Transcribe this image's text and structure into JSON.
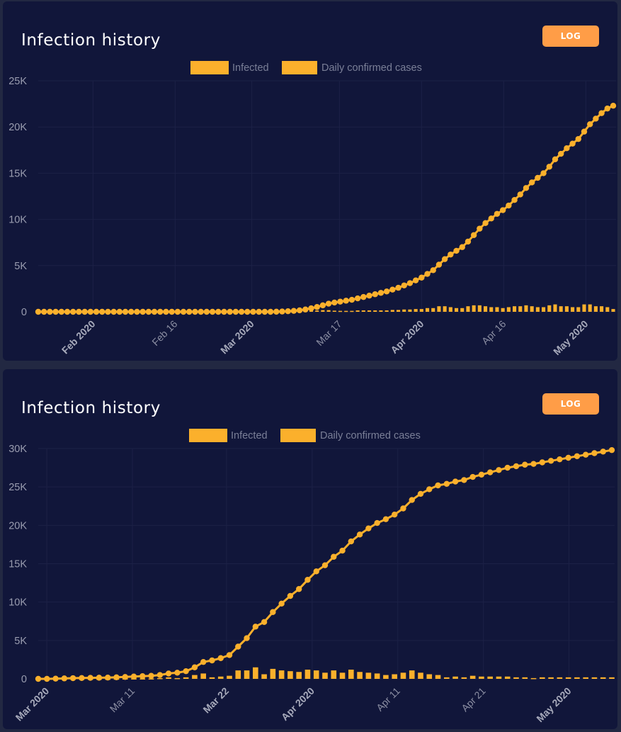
{
  "chart_data": [
    {
      "type": "line",
      "title": "Infection history",
      "button_label": "LOG",
      "legend": [
        "Infected",
        "Daily confirmed cases"
      ],
      "legend_position": "top-center",
      "grid": true,
      "colors": {
        "line": "#fbb02c",
        "bar": "#fbb02c"
      },
      "ylim": [
        0,
        25000
      ],
      "yticks": [
        {
          "value": 0,
          "label": "0"
        },
        {
          "value": 5000,
          "label": "5K"
        },
        {
          "value": 10000,
          "label": "10K"
        },
        {
          "value": 15000,
          "label": "15K"
        },
        {
          "value": 20000,
          "label": "20K"
        },
        {
          "value": 25000,
          "label": "25K"
        }
      ],
      "x_start": "2020-01-22",
      "x_end": "2020-05-06",
      "xticks": [
        {
          "date": "2020-02-01",
          "label": "Feb 2020",
          "major": true
        },
        {
          "date": "2020-02-16",
          "label": "Feb 16",
          "major": false
        },
        {
          "date": "2020-03-01",
          "label": "Mar 2020",
          "major": true
        },
        {
          "date": "2020-03-17",
          "label": "Mar 17",
          "major": false
        },
        {
          "date": "2020-04-01",
          "label": "Apr 2020",
          "major": true
        },
        {
          "date": "2020-04-16",
          "label": "Apr 16",
          "major": false
        },
        {
          "date": "2020-05-01",
          "label": "May 2020",
          "major": true
        }
      ],
      "series": [
        {
          "name": "Infected",
          "type": "line",
          "values": [
            0,
            0,
            0,
            0,
            0,
            0,
            0,
            0,
            0,
            0,
            0,
            0,
            0,
            0,
            0,
            0,
            0,
            0,
            0,
            0,
            0,
            0,
            0,
            0,
            0,
            0,
            0,
            0,
            0,
            0,
            0,
            0,
            0,
            0,
            0,
            0,
            0,
            0,
            0,
            0,
            0,
            10,
            30,
            60,
            100,
            160,
            250,
            380,
            520,
            700,
            880,
            1000,
            1100,
            1200,
            1300,
            1450,
            1600,
            1750,
            1900,
            2050,
            2200,
            2400,
            2600,
            2850,
            3100,
            3400,
            3700,
            4100,
            4500,
            5100,
            5700,
            6200,
            6600,
            7000,
            7600,
            8300,
            9000,
            9600,
            10100,
            10600,
            11000,
            11500,
            12100,
            12700,
            13400,
            14000,
            14500,
            15000,
            15700,
            16500,
            17100,
            17700,
            18200,
            18700,
            19500,
            20300,
            20900,
            21500,
            22000,
            22300
          ]
        },
        {
          "name": "Daily confirmed cases",
          "type": "bar",
          "values": [
            0,
            0,
            0,
            0,
            0,
            0,
            0,
            0,
            0,
            0,
            0,
            0,
            0,
            0,
            0,
            0,
            0,
            0,
            0,
            0,
            0,
            0,
            0,
            0,
            0,
            0,
            0,
            0,
            0,
            0,
            0,
            0,
            0,
            0,
            0,
            0,
            0,
            0,
            0,
            0,
            0,
            10,
            20,
            30,
            40,
            60,
            90,
            130,
            140,
            180,
            180,
            120,
            100,
            100,
            100,
            150,
            150,
            150,
            150,
            150,
            150,
            200,
            200,
            250,
            250,
            300,
            300,
            400,
            400,
            600,
            600,
            500,
            400,
            400,
            600,
            700,
            700,
            600,
            500,
            500,
            400,
            500,
            600,
            600,
            700,
            600,
            500,
            500,
            700,
            800,
            600,
            600,
            500,
            500,
            800,
            800,
            600,
            600,
            500,
            300
          ]
        }
      ]
    },
    {
      "type": "line",
      "title": "Infection history",
      "button_label": "LOG",
      "legend": [
        "Infected",
        "Daily confirmed cases"
      ],
      "legend_position": "top-center",
      "grid": true,
      "colors": {
        "line": "#fbb02c",
        "bar": "#fbb02c"
      },
      "ylim": [
        0,
        30000
      ],
      "yticks": [
        {
          "value": 0,
          "label": "0"
        },
        {
          "value": 5000,
          "label": "5K"
        },
        {
          "value": 10000,
          "label": "10K"
        },
        {
          "value": 15000,
          "label": "15K"
        },
        {
          "value": 20000,
          "label": "20K"
        },
        {
          "value": 25000,
          "label": "25K"
        },
        {
          "value": 30000,
          "label": "30K"
        }
      ],
      "x_start": "2020-02-29",
      "x_end": "2020-05-06",
      "xticks": [
        {
          "date": "2020-03-01",
          "label": "Mar 2020",
          "major": true
        },
        {
          "date": "2020-03-11",
          "label": "Mar 11",
          "major": false
        },
        {
          "date": "2020-03-22",
          "label": "Mar 22",
          "major": true
        },
        {
          "date": "2020-04-01",
          "label": "Apr 2020",
          "major": true
        },
        {
          "date": "2020-04-11",
          "label": "Apr 11",
          "major": false
        },
        {
          "date": "2020-04-21",
          "label": "Apr 21",
          "major": false
        },
        {
          "date": "2020-05-01",
          "label": "May 2020",
          "major": true
        }
      ],
      "series": [
        {
          "name": "Infected",
          "type": "line",
          "values": [
            0,
            0,
            30,
            60,
            90,
            110,
            130,
            150,
            170,
            200,
            250,
            300,
            350,
            400,
            500,
            700,
            800,
            1000,
            1500,
            2200,
            2400,
            2700,
            3100,
            4200,
            5300,
            6800,
            7400,
            8700,
            9800,
            10800,
            11700,
            12900,
            14000,
            14800,
            15900,
            16700,
            17900,
            18800,
            19600,
            20300,
            20800,
            21400,
            22200,
            23300,
            24100,
            24700,
            25200,
            25400,
            25700,
            25900,
            26300,
            26600,
            26900,
            27200,
            27500,
            27700,
            27900,
            28000,
            28200,
            28400,
            28600,
            28800,
            29000,
            29200,
            29400,
            29600,
            29800
          ]
        },
        {
          "name": "Daily confirmed cases",
          "type": "bar",
          "values": [
            0,
            0,
            30,
            30,
            30,
            20,
            20,
            20,
            20,
            30,
            50,
            50,
            50,
            50,
            100,
            200,
            100,
            200,
            500,
            700,
            200,
            300,
            400,
            1100,
            1100,
            1500,
            600,
            1300,
            1100,
            1000,
            900,
            1200,
            1100,
            800,
            1100,
            800,
            1200,
            900,
            800,
            700,
            500,
            600,
            800,
            1100,
            800,
            600,
            500,
            200,
            300,
            200,
            400,
            300,
            300,
            300,
            300,
            200,
            200,
            100,
            200,
            200,
            200,
            200,
            200,
            200,
            200,
            200,
            200
          ]
        }
      ]
    }
  ]
}
